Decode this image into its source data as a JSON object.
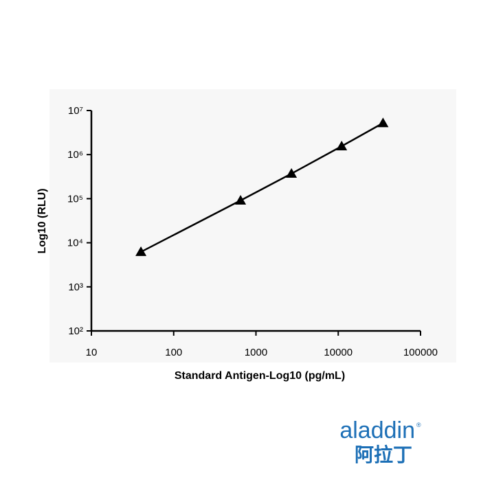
{
  "chart_data": {
    "type": "line",
    "x_label": "Standard Antigen-Log10 (pg/mL)",
    "y_label": "Log10 (RLU)",
    "x": [
      40,
      650,
      2700,
      11000,
      35000
    ],
    "series": [
      {
        "values": [
          6200,
          91000,
          370000,
          1550000,
          5200000
        ],
        "color": "#000000"
      }
    ],
    "xscale": "log",
    "yscale": "log",
    "xlim": [
      10,
      100000
    ],
    "ylim": [
      100,
      10000000
    ],
    "xticks": [
      10,
      100,
      1000,
      10000,
      100000
    ],
    "yticks": [
      {
        "value": 100,
        "label": "10²"
      },
      {
        "value": 1000,
        "label": "10³"
      },
      {
        "value": 10000,
        "label": "10⁴"
      },
      {
        "value": 100000,
        "label": "10⁵"
      },
      {
        "value": 1000000,
        "label": "10⁶"
      },
      {
        "value": 10000000,
        "label": "10⁷"
      }
    ],
    "marker": "triangle"
  },
  "logo": {
    "text": "aladdin",
    "cn": "阿拉丁"
  }
}
